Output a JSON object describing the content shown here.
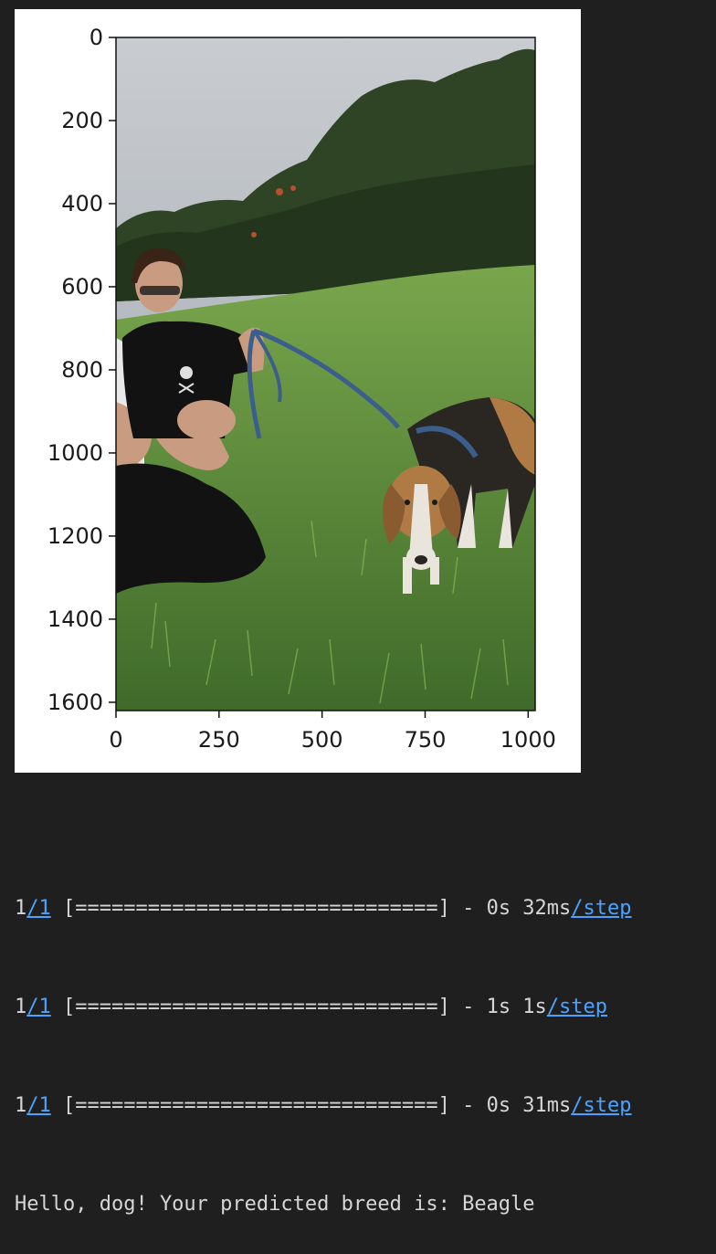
{
  "figure": {
    "y_ticks": [
      "0",
      "200",
      "400",
      "600",
      "800",
      "1000",
      "1200",
      "1400",
      "1600"
    ],
    "x_ticks": [
      "0",
      "250",
      "500",
      "750",
      "1000"
    ],
    "image_description_icon": "photo-woman-with-beagle-on-grass-hill",
    "colors": {
      "sky": "#9aa4ad",
      "trees": "#2a3f22",
      "grass": "#5f8a3d",
      "leash": "#3b5e8c",
      "dog_tan": "#b07a45",
      "dog_black": "#2a2622",
      "dog_white": "#e9e5dc"
    }
  },
  "console": {
    "lines": [
      {
        "step_a": "1",
        "step_b": "/1",
        "bar": " [==============================] - 0s 32ms",
        "unit": "/step"
      },
      {
        "step_a": "1",
        "step_b": "/1",
        "bar": " [==============================] - 1s 1s",
        "unit": "/step"
      },
      {
        "step_a": "1",
        "step_b": "/1",
        "bar": " [==============================] - 0s 31ms",
        "unit": "/step"
      }
    ],
    "prediction": "Hello, dog! Your predicted breed is: Beagle"
  }
}
